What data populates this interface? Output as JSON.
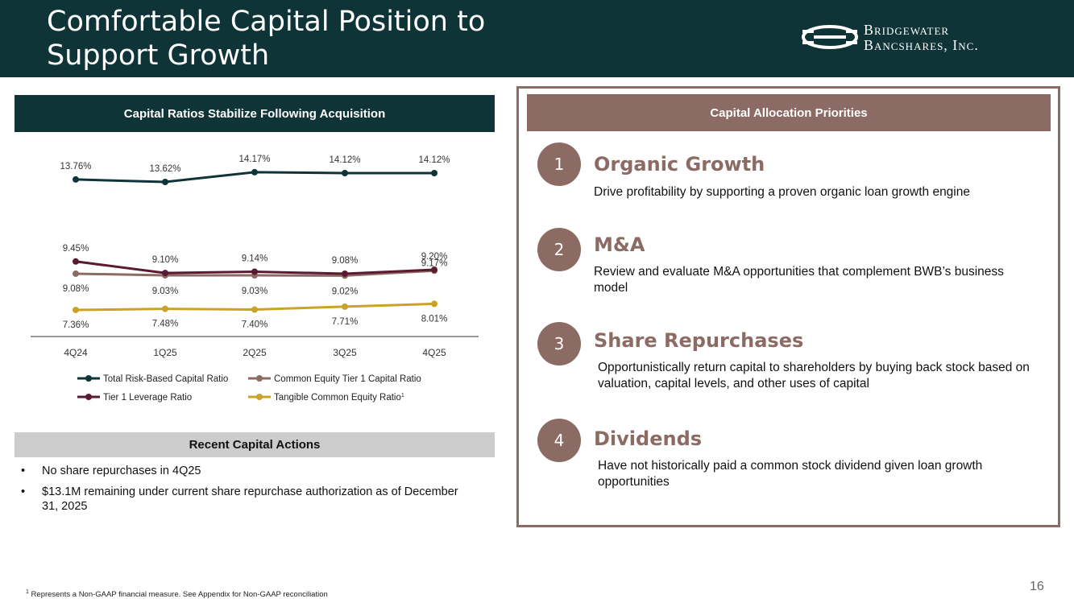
{
  "header": {
    "title_line1": "Comfortable Capital Position to",
    "title_line2": "Support Growth",
    "logo_line1": "Bridgewater",
    "logo_line2": "Bancshares, Inc.",
    "bg_color": "#0f3437"
  },
  "left_panel": {
    "title": "Capital Ratios Stabilize Following Acquisition",
    "recent_title": "Recent Capital Actions",
    "bullets": [
      "No share repurchases in 4Q25",
      "$13.1M remaining under current share repurchase authorization as of December 31, 2025"
    ],
    "bullet_symbol": "•"
  },
  "chart_data": {
    "type": "line",
    "categories": [
      "4Q24",
      "1Q25",
      "2Q25",
      "3Q25",
      "4Q25"
    ],
    "series": [
      {
        "name": "Total Risk-Based Capital Ratio",
        "color": "#0f3437",
        "values": [
          13.76,
          13.62,
          14.17,
          14.12,
          14.12
        ],
        "labels": [
          "13.76%",
          "13.62%",
          "14.17%",
          "14.12%",
          "14.12%"
        ]
      },
      {
        "name": "Common Equity Tier 1 Capital Ratio",
        "color": "#8b6b63",
        "values": [
          9.08,
          9.03,
          9.03,
          9.02,
          9.17
        ],
        "labels": [
          "9.08%",
          "9.03%",
          "9.03%",
          "9.02%",
          "9.17%"
        ]
      },
      {
        "name": "Tier 1 Leverage Ratio",
        "color": "#5a1a33",
        "values": [
          9.45,
          9.1,
          9.14,
          9.08,
          9.2
        ],
        "labels": [
          "9.45%",
          "9.10%",
          "9.14%",
          "9.08%",
          "9.20%"
        ]
      },
      {
        "name": "Tangible Common Equity Ratio",
        "name_sup": "1",
        "color": "#c9a227",
        "values": [
          7.36,
          7.48,
          7.4,
          7.71,
          8.01
        ],
        "labels": [
          "7.36%",
          "7.48%",
          "7.40%",
          "7.71%",
          "8.01%"
        ]
      }
    ],
    "title": "",
    "xlabel": "",
    "ylabel": "",
    "grid": false,
    "legend": "bottom"
  },
  "right_panel": {
    "title": "Capital Allocation Priorities",
    "accent": "#8b6b63",
    "priorities": [
      {
        "number": "1",
        "title": "Organic Growth",
        "desc": "Drive profitability by supporting a proven organic loan growth engine"
      },
      {
        "number": "2",
        "title": "M&A",
        "desc": "Review and evaluate M&A opportunities that complement BWB’s business model"
      },
      {
        "number": "3",
        "title": "Share Repurchases",
        "desc": "Opportunistically return capital to shareholders by buying back stock based on valuation, capital levels, and other uses of capital"
      },
      {
        "number": "4",
        "title": "Dividends",
        "desc": "Have not historically paid a common stock dividend given loan growth opportunities"
      }
    ]
  },
  "footer": {
    "footnote_sup": "1",
    "footnote": "Represents a Non-GAAP financial measure. See Appendix for Non-GAAP reconciliation",
    "page_number": "16"
  }
}
